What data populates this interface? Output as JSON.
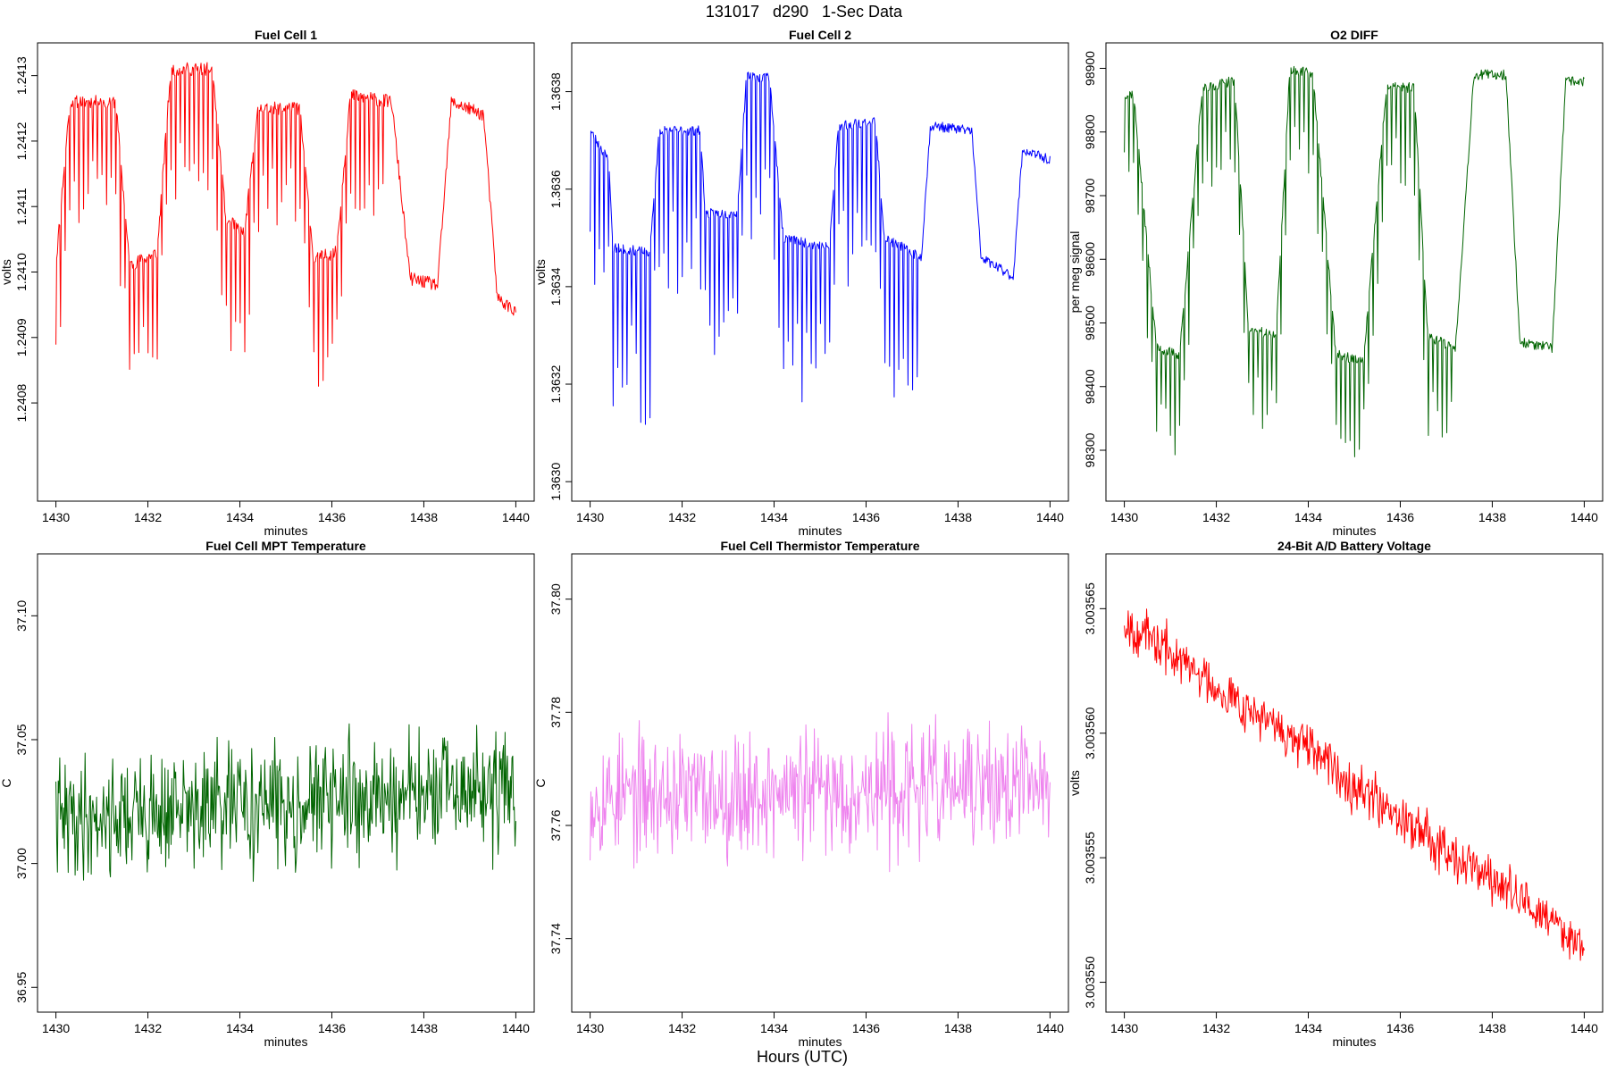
{
  "figure": {
    "title": "131017   d290   1-Sec Data",
    "outer_xlabel": "Hours (UTC)"
  },
  "chart_data": [
    {
      "type": "line",
      "title": "Fuel Cell 1",
      "xlabel": "minutes",
      "ylabel": "volts",
      "color": "#ff0000",
      "xlim": [
        1429.6,
        1440.4
      ],
      "ylim": [
        1.24065,
        1.24135
      ],
      "x_ticks": [
        1430,
        1432,
        1434,
        1436,
        1438,
        1440
      ],
      "y_ticks": [
        1.2408,
        1.2409,
        1.241,
        1.2411,
        1.2412,
        1.2413
      ],
      "y_tick_labels": [
        "1.2408",
        "1.2409",
        "1.2410",
        "1.2411",
        "1.2412",
        "1.2413"
      ],
      "x_range": [
        1430,
        1440
      ],
      "levels": [
        {
          "x": 1430.0,
          "y": 1.24101
        },
        {
          "x": 1430.3,
          "y": 1.24126
        },
        {
          "x": 1431.3,
          "y": 1.24126
        },
        {
          "x": 1431.6,
          "y": 1.24101
        },
        {
          "x": 1432.2,
          "y": 1.24103
        },
        {
          "x": 1432.5,
          "y": 1.24131
        },
        {
          "x": 1433.4,
          "y": 1.24131
        },
        {
          "x": 1433.7,
          "y": 1.24108
        },
        {
          "x": 1434.1,
          "y": 1.24106
        },
        {
          "x": 1434.4,
          "y": 1.24125
        },
        {
          "x": 1435.3,
          "y": 1.24125
        },
        {
          "x": 1435.6,
          "y": 1.24102
        },
        {
          "x": 1436.1,
          "y": 1.24103
        },
        {
          "x": 1436.4,
          "y": 1.24127
        },
        {
          "x": 1437.3,
          "y": 1.24126
        },
        {
          "x": 1437.7,
          "y": 1.24099
        },
        {
          "x": 1438.3,
          "y": 1.24098
        },
        {
          "x": 1438.6,
          "y": 1.24126
        },
        {
          "x": 1439.3,
          "y": 1.24124
        },
        {
          "x": 1439.6,
          "y": 1.24096
        },
        {
          "x": 1440.0,
          "y": 1.24094
        }
      ],
      "spike_period": 0.1,
      "spike_depth": 0.0002,
      "noise": 1e-05,
      "samples": 600,
      "seed": 11
    },
    {
      "type": "line",
      "title": "Fuel Cell 2",
      "xlabel": "minutes",
      "ylabel": "volts",
      "color": "#0000ff",
      "xlim": [
        1429.6,
        1440.4
      ],
      "ylim": [
        1.36296,
        1.3639
      ],
      "x_ticks": [
        1430,
        1432,
        1434,
        1436,
        1438,
        1440
      ],
      "y_ticks": [
        1.363,
        1.3632,
        1.3634,
        1.3636,
        1.3638
      ],
      "y_tick_labels": [
        "1.3630",
        "1.3632",
        "1.3634",
        "1.3636",
        "1.3638"
      ],
      "x_range": [
        1430,
        1440
      ],
      "levels": [
        {
          "x": 1430.0,
          "y": 1.36372
        },
        {
          "x": 1430.4,
          "y": 1.36366
        },
        {
          "x": 1430.5,
          "y": 1.36348
        },
        {
          "x": 1431.3,
          "y": 1.36347
        },
        {
          "x": 1431.5,
          "y": 1.36372
        },
        {
          "x": 1432.4,
          "y": 1.36372
        },
        {
          "x": 1432.5,
          "y": 1.36355
        },
        {
          "x": 1433.2,
          "y": 1.36355
        },
        {
          "x": 1433.4,
          "y": 1.36383
        },
        {
          "x": 1433.9,
          "y": 1.36383
        },
        {
          "x": 1434.2,
          "y": 1.3635
        },
        {
          "x": 1435.2,
          "y": 1.36348
        },
        {
          "x": 1435.4,
          "y": 1.36373
        },
        {
          "x": 1436.2,
          "y": 1.36374
        },
        {
          "x": 1436.4,
          "y": 1.3635
        },
        {
          "x": 1437.2,
          "y": 1.36346
        },
        {
          "x": 1437.4,
          "y": 1.36373
        },
        {
          "x": 1438.3,
          "y": 1.36372
        },
        {
          "x": 1438.5,
          "y": 1.36346
        },
        {
          "x": 1439.2,
          "y": 1.36342
        },
        {
          "x": 1439.4,
          "y": 1.36368
        },
        {
          "x": 1440.0,
          "y": 1.36366
        }
      ],
      "spike_period": 0.1,
      "spike_depth": 0.00035,
      "noise": 1e-05,
      "samples": 600,
      "seed": 23
    },
    {
      "type": "line",
      "title": "O2 DIFF",
      "xlabel": "minutes",
      "ylabel": "per meg signal",
      "color": "#006400",
      "xlim": [
        1429.6,
        1440.4
      ],
      "ylim": [
        98220,
        98940
      ],
      "x_ticks": [
        1430,
        1432,
        1434,
        1436,
        1438,
        1440
      ],
      "y_ticks": [
        98300,
        98400,
        98500,
        98600,
        98700,
        98800,
        98900
      ],
      "y_tick_labels": [
        "98300",
        "98400",
        "98500",
        "98600",
        "98700",
        "98800",
        "98900"
      ],
      "x_range": [
        1430,
        1440
      ],
      "levels": [
        {
          "x": 1430.0,
          "y": 98860
        },
        {
          "x": 1430.2,
          "y": 98860
        },
        {
          "x": 1430.7,
          "y": 98460
        },
        {
          "x": 1431.2,
          "y": 98450
        },
        {
          "x": 1431.7,
          "y": 98870
        },
        {
          "x": 1432.4,
          "y": 98880
        },
        {
          "x": 1432.7,
          "y": 98490
        },
        {
          "x": 1433.3,
          "y": 98480
        },
        {
          "x": 1433.6,
          "y": 98900
        },
        {
          "x": 1434.1,
          "y": 98890
        },
        {
          "x": 1434.6,
          "y": 98450
        },
        {
          "x": 1435.2,
          "y": 98440
        },
        {
          "x": 1435.7,
          "y": 98870
        },
        {
          "x": 1436.3,
          "y": 98870
        },
        {
          "x": 1436.6,
          "y": 98480
        },
        {
          "x": 1437.2,
          "y": 98460
        },
        {
          "x": 1437.6,
          "y": 98890
        },
        {
          "x": 1438.3,
          "y": 98890
        },
        {
          "x": 1438.6,
          "y": 98470
        },
        {
          "x": 1439.3,
          "y": 98460
        },
        {
          "x": 1439.6,
          "y": 98880
        },
        {
          "x": 1440.0,
          "y": 98880
        }
      ],
      "spike_period": 0.1,
      "spike_depth": 160,
      "noise": 8,
      "samples": 600,
      "seed": 37
    },
    {
      "type": "line",
      "title": "Fuel Cell MPT Temperature",
      "xlabel": "minutes",
      "ylabel": "C",
      "color": "#006400",
      "xlim": [
        1429.6,
        1440.4
      ],
      "ylim": [
        36.94,
        37.125
      ],
      "x_ticks": [
        1430,
        1432,
        1434,
        1436,
        1438,
        1440
      ],
      "y_ticks": [
        36.95,
        37.0,
        37.05,
        37.1
      ],
      "y_tick_labels": [
        "36.95",
        "37.00",
        "37.05",
        "37.10"
      ],
      "x_range": [
        1430,
        1440
      ],
      "trend": [
        37.018,
        37.03
      ],
      "noise": 0.022,
      "samples": 600,
      "seed": 41
    },
    {
      "type": "line",
      "title": "Fuel Cell Thermistor Temperature",
      "xlabel": "minutes",
      "ylabel": "C",
      "color": "#ee82ee",
      "xlim": [
        1429.6,
        1440.4
      ],
      "ylim": [
        37.727,
        37.808
      ],
      "x_ticks": [
        1430,
        1432,
        1434,
        1436,
        1438,
        1440
      ],
      "y_ticks": [
        37.74,
        37.76,
        37.78,
        37.8
      ],
      "y_tick_labels": [
        "37.74",
        "37.76",
        "37.78",
        "37.80"
      ],
      "x_range": [
        1430,
        1440
      ],
      "trend": [
        37.765,
        37.767
      ],
      "noise": 0.01,
      "samples": 600,
      "seed": 53
    },
    {
      "type": "line",
      "title": "24-Bit A/D Battery Voltage",
      "xlabel": "minutes",
      "ylabel": "volts",
      "color": "#ff0000",
      "xlim": [
        1429.6,
        1440.4
      ],
      "ylim": [
        3.0035488,
        3.0035672
      ],
      "x_ticks": [
        1430,
        1432,
        1434,
        1436,
        1438,
        1440
      ],
      "y_ticks": [
        3.00355,
        3.003555,
        3.00356,
        3.003565
      ],
      "y_tick_labels": [
        "3.003550",
        "3.003555",
        "3.003560",
        "3.003565"
      ],
      "x_range": [
        1430,
        1440
      ],
      "trend": [
        3.0035645,
        3.0035515
      ],
      "noise": 9e-07,
      "samples": 600,
      "seed": 67
    }
  ]
}
